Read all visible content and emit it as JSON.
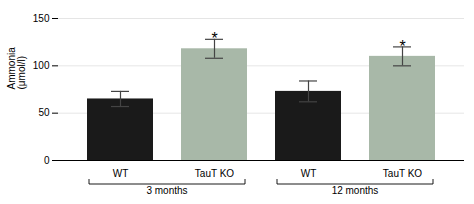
{
  "chart_data": {
    "type": "bar",
    "categories": [
      "WT",
      "TauT KO",
      "WT",
      "TauT KO"
    ],
    "values": [
      65,
      118,
      73,
      110
    ],
    "errors": [
      8,
      10,
      11,
      10
    ],
    "colors": [
      "#1a1a1a",
      "#a8b8a8",
      "#1a1a1a",
      "#a8b8a8"
    ],
    "groups": [
      "3 months",
      "3 months",
      "12 months",
      "12 months"
    ],
    "annotations": [
      {
        "index": 1,
        "text": "*"
      },
      {
        "index": 3,
        "text": "*"
      }
    ],
    "ylabel": "Ammonia\n(μmol/l)",
    "ylim": [
      0,
      150
    ],
    "yticks": [
      0,
      50,
      100,
      150
    ],
    "grid": true
  }
}
